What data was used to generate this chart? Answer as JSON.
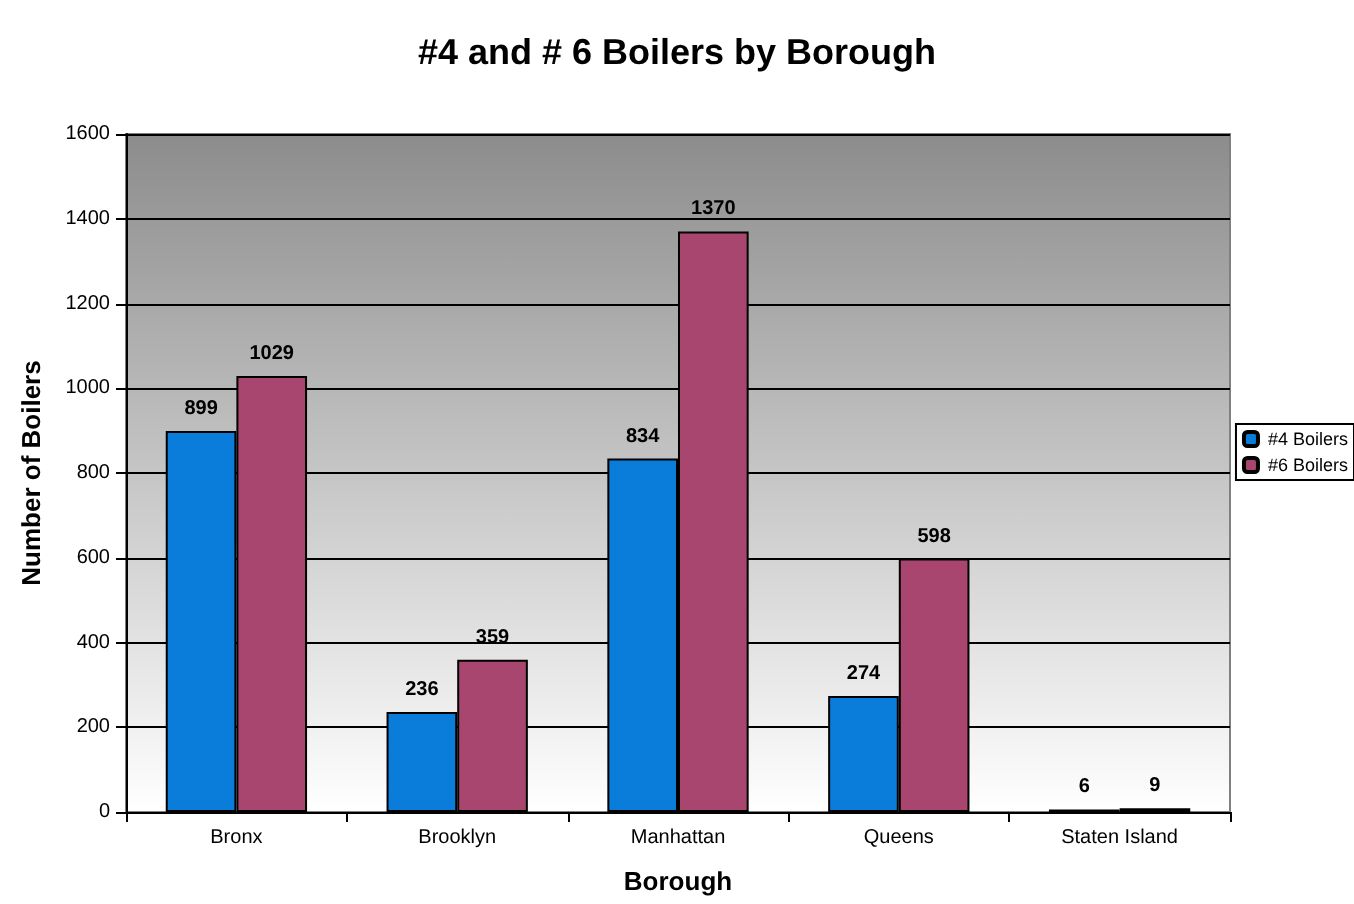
{
  "chart_data": {
    "type": "bar",
    "title": "#4 and # 6 Boilers by Borough",
    "xlabel": "Borough",
    "ylabel": "Number of Boilers",
    "categories": [
      "Bronx",
      "Brooklyn",
      "Manhattan",
      "Queens",
      "Staten Island"
    ],
    "series": [
      {
        "name": "#4 Boilers",
        "color": "#0a7ddb",
        "values": [
          899,
          236,
          834,
          274,
          6
        ]
      },
      {
        "name": "#6 Boilers",
        "color": "#a8466f",
        "values": [
          1029,
          359,
          1370,
          598,
          9
        ]
      }
    ],
    "ylim": [
      0,
      1600
    ],
    "yticks": [
      0,
      200,
      400,
      600,
      800,
      1000,
      1200,
      1400,
      1600
    ],
    "grid": "y",
    "legend": "right",
    "data_labels": true
  }
}
